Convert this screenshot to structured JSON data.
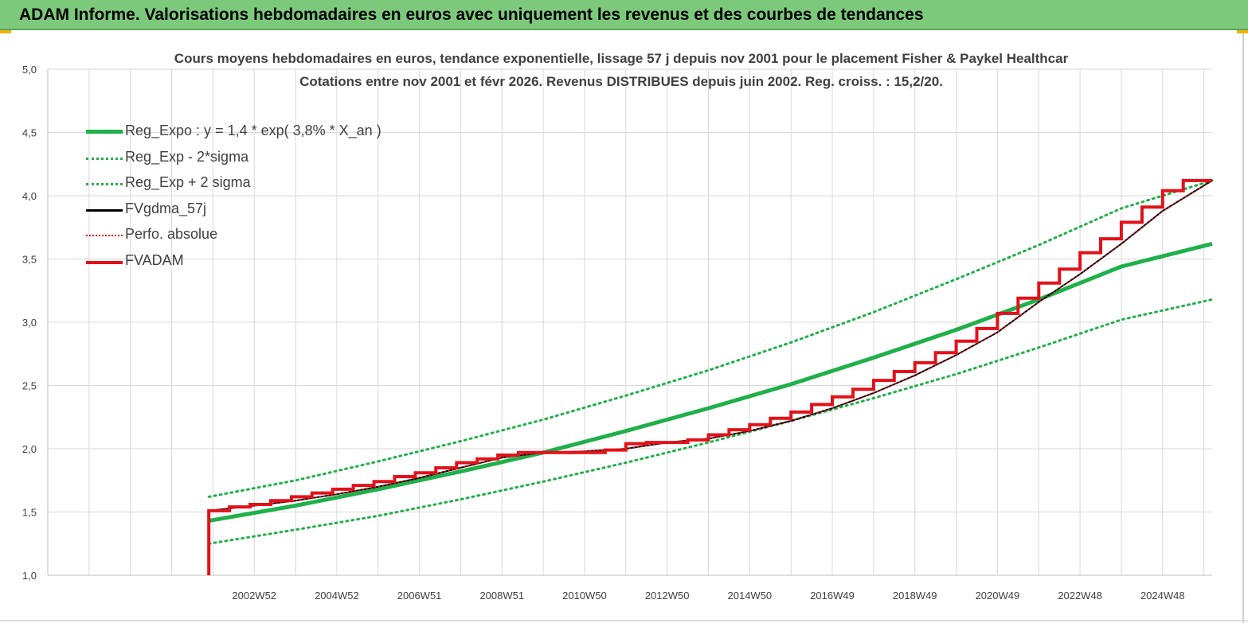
{
  "banner": {
    "title": "ADAM Informe. Valorisations hebdomadaires en euros avec uniquement les revenus et des courbes de tendances"
  },
  "colors": {
    "banner_bg": "#7dc97c",
    "reg_green": "#1fb04a",
    "band_green": "#21b04a",
    "ma_black": "#000000",
    "adam_red": "#e3111a",
    "grid": "#d9d9d9"
  },
  "chart_data": {
    "type": "line",
    "title_line1": "Cours moyens hebdomadaires en euros, tendance exponentielle, lissage 57 j depuis nov 2001 pour le placement Fisher & Paykel Healthcar",
    "title_line2": "Cotations entre nov 2001 et févr 2026. Revenus DISTRIBUES depuis juin 2002. Reg. croiss. : 15,2/20.",
    "ylim": [
      1.0,
      5.0
    ],
    "y_ticks": [
      "1,0",
      "1,5",
      "2,0",
      "2,5",
      "3,0",
      "3,5",
      "4,0",
      "4,5",
      "5,0"
    ],
    "x_range": [
      1998.0,
      2026.2
    ],
    "x_ticks": [
      {
        "year": 2003,
        "label": "2002W52"
      },
      {
        "year": 2005,
        "label": "2004W52"
      },
      {
        "year": 2007,
        "label": "2006W51"
      },
      {
        "year": 2009,
        "label": "2008W51"
      },
      {
        "year": 2011,
        "label": "2010W50"
      },
      {
        "year": 2013,
        "label": "2012W50"
      },
      {
        "year": 2015,
        "label": "2014W50"
      },
      {
        "year": 2017,
        "label": "2016W49"
      },
      {
        "year": 2019,
        "label": "2018W49"
      },
      {
        "year": 2021,
        "label": "2020W49"
      },
      {
        "year": 2023,
        "label": "2022W48"
      },
      {
        "year": 2025,
        "label": "2024W48"
      }
    ],
    "grid": true,
    "legend_position": "top-left",
    "series": [
      {
        "name": "Reg_Expo : y = 1,4 * exp( 3,8% *  X_an )",
        "style": "solid-thick",
        "color": "#1fb04a",
        "points": [
          [
            2001.9,
            1.43
          ],
          [
            2004,
            1.55
          ],
          [
            2006,
            1.68
          ],
          [
            2008,
            1.82
          ],
          [
            2010,
            1.97
          ],
          [
            2012,
            2.14
          ],
          [
            2014,
            2.32
          ],
          [
            2016,
            2.51
          ],
          [
            2018,
            2.72
          ],
          [
            2020,
            2.94
          ],
          [
            2022,
            3.18
          ],
          [
            2024,
            3.44
          ],
          [
            2026.2,
            3.62
          ]
        ]
      },
      {
        "name": "Reg_Exp - 2*sigma",
        "style": "dotted",
        "color": "#21b04a",
        "points": [
          [
            2001.9,
            1.25
          ],
          [
            2004,
            1.36
          ],
          [
            2006,
            1.47
          ],
          [
            2008,
            1.6
          ],
          [
            2010,
            1.74
          ],
          [
            2012,
            1.89
          ],
          [
            2014,
            2.05
          ],
          [
            2016,
            2.22
          ],
          [
            2018,
            2.4
          ],
          [
            2020,
            2.59
          ],
          [
            2022,
            2.8
          ],
          [
            2024,
            3.02
          ],
          [
            2026.2,
            3.18
          ]
        ]
      },
      {
        "name": "Reg_Exp + 2 sigma",
        "style": "dotted",
        "color": "#21b04a",
        "points": [
          [
            2001.9,
            1.62
          ],
          [
            2004,
            1.75
          ],
          [
            2006,
            1.9
          ],
          [
            2008,
            2.06
          ],
          [
            2010,
            2.23
          ],
          [
            2012,
            2.42
          ],
          [
            2014,
            2.62
          ],
          [
            2016,
            2.84
          ],
          [
            2018,
            3.08
          ],
          [
            2020,
            3.34
          ],
          [
            2022,
            3.61
          ],
          [
            2024,
            3.9
          ],
          [
            2026.2,
            4.12
          ]
        ]
      },
      {
        "name": "FVgdma_57j",
        "style": "solid",
        "color": "#000000",
        "points": [
          [
            2001.9,
            1.51
          ],
          [
            2003,
            1.55
          ],
          [
            2004,
            1.59
          ],
          [
            2005,
            1.64
          ],
          [
            2006,
            1.7
          ],
          [
            2007,
            1.77
          ],
          [
            2008,
            1.85
          ],
          [
            2009,
            1.93
          ],
          [
            2010,
            1.97
          ],
          [
            2011,
            1.98
          ],
          [
            2012,
            2.0
          ],
          [
            2013,
            2.05
          ],
          [
            2014,
            2.08
          ],
          [
            2015,
            2.14
          ],
          [
            2016,
            2.22
          ],
          [
            2017,
            2.32
          ],
          [
            2018,
            2.44
          ],
          [
            2019,
            2.58
          ],
          [
            2020,
            2.74
          ],
          [
            2021,
            2.92
          ],
          [
            2022,
            3.16
          ],
          [
            2023,
            3.38
          ],
          [
            2024,
            3.62
          ],
          [
            2025,
            3.88
          ],
          [
            2026.2,
            4.12
          ]
        ]
      },
      {
        "name": "Perfo. absolue",
        "style": "dotted",
        "color": "#e3111a",
        "points": [
          [
            2001.9,
            1.51
          ],
          [
            2003,
            1.55
          ],
          [
            2004,
            1.59
          ],
          [
            2005,
            1.64
          ],
          [
            2006,
            1.7
          ],
          [
            2007,
            1.77
          ],
          [
            2008,
            1.85
          ],
          [
            2009,
            1.93
          ],
          [
            2010,
            1.97
          ],
          [
            2011,
            1.98
          ],
          [
            2012,
            2.0
          ],
          [
            2013,
            2.05
          ],
          [
            2014,
            2.08
          ],
          [
            2015,
            2.14
          ],
          [
            2016,
            2.22
          ],
          [
            2017,
            2.32
          ],
          [
            2018,
            2.44
          ],
          [
            2019,
            2.58
          ],
          [
            2020,
            2.74
          ],
          [
            2021,
            2.92
          ],
          [
            2022,
            3.16
          ],
          [
            2023,
            3.38
          ],
          [
            2024,
            3.62
          ],
          [
            2025,
            3.88
          ],
          [
            2026.2,
            4.12
          ]
        ]
      },
      {
        "name": "FVADAM",
        "style": "step-thick",
        "color": "#e3111a",
        "start": [
          2001.9,
          1.0
        ],
        "steps": [
          [
            2001.9,
            1.51
          ],
          [
            2002.4,
            1.54
          ],
          [
            2002.9,
            1.56
          ],
          [
            2003.4,
            1.59
          ],
          [
            2003.9,
            1.62
          ],
          [
            2004.4,
            1.65
          ],
          [
            2004.9,
            1.68
          ],
          [
            2005.4,
            1.71
          ],
          [
            2005.9,
            1.74
          ],
          [
            2006.4,
            1.78
          ],
          [
            2006.9,
            1.81
          ],
          [
            2007.4,
            1.85
          ],
          [
            2007.9,
            1.89
          ],
          [
            2008.4,
            1.92
          ],
          [
            2008.9,
            1.95
          ],
          [
            2009.4,
            1.97
          ],
          [
            2011.5,
            1.99
          ],
          [
            2012.0,
            2.04
          ],
          [
            2012.5,
            2.05
          ],
          [
            2013.5,
            2.07
          ],
          [
            2014.0,
            2.11
          ],
          [
            2014.5,
            2.15
          ],
          [
            2015.0,
            2.19
          ],
          [
            2015.5,
            2.24
          ],
          [
            2016.0,
            2.29
          ],
          [
            2016.5,
            2.35
          ],
          [
            2017.0,
            2.41
          ],
          [
            2017.5,
            2.47
          ],
          [
            2018.0,
            2.54
          ],
          [
            2018.5,
            2.61
          ],
          [
            2019.0,
            2.68
          ],
          [
            2019.5,
            2.76
          ],
          [
            2020.0,
            2.85
          ],
          [
            2020.5,
            2.95
          ],
          [
            2021.0,
            3.07
          ],
          [
            2021.5,
            3.19
          ],
          [
            2022.0,
            3.31
          ],
          [
            2022.5,
            3.42
          ],
          [
            2023.0,
            3.55
          ],
          [
            2023.5,
            3.66
          ],
          [
            2024.0,
            3.79
          ],
          [
            2024.5,
            3.91
          ],
          [
            2025.0,
            4.04
          ],
          [
            2025.5,
            4.12
          ],
          [
            2026.2,
            4.12
          ]
        ]
      }
    ]
  }
}
